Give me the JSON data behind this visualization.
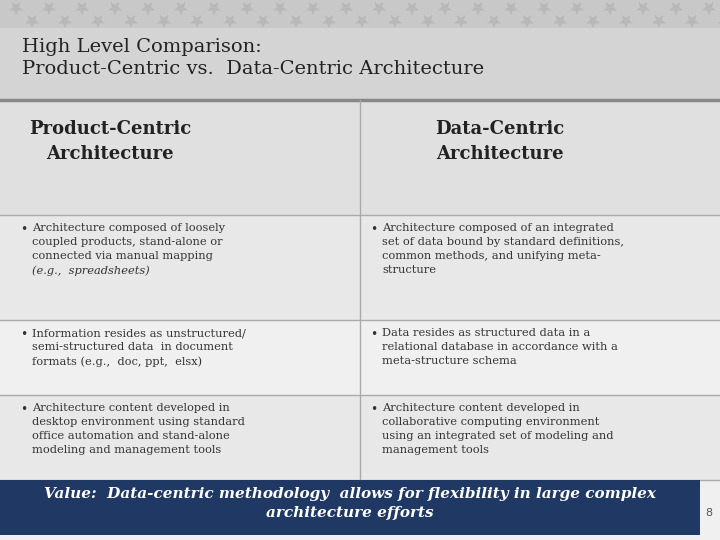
{
  "title_line1": "High Level Comparison:",
  "title_line2": "Product-Centric vs.  Data-Centric Architecture",
  "title_bg": "#d4d4d4",
  "title_color": "#222222",
  "header_left": "Product-Centric\nArchitecture",
  "header_right": "Data-Centric\nArchitecture",
  "header_color": "#222222",
  "content_bg_1": "#e8e8e8",
  "content_bg_2": "#f0f0f0",
  "content_bg_3": "#e8e8e8",
  "header_bg": "#e0e0e0",
  "main_bg": "#f0f0f0",
  "bullet_left": [
    "Architecture composed of loosely\ncoupled products, stand-alone or\nconnected via manual mapping\n(e.g.,  spreadsheets)",
    "Information resides as unstructured/\nsemi-structured data  in document\nformats (e.g.,  doc, ppt,  elsx)",
    "Architecture content developed in\ndesktop environment using standard\noffice automation and stand-alone\nmodeling and management tools"
  ],
  "bullet_right": [
    "Architecture composed of an integrated\nset of data bound by standard definitions,\ncommon methods, and unifying meta-\nstructure",
    "Data resides as structured data in a\nrelational database in accordance with a\nmeta-structure schema",
    "Architecture content developed in\ncollaborative computing environment\nusing an integrated set of modeling and\nmanagement tools"
  ],
  "footer_text": "Value:  Data-centric methodology  allows for flexibility in large complex\narchitecture efforts",
  "footer_bg": "#1f3864",
  "footer_color": "#ffffff",
  "page_num": "8",
  "star_bg": "#c8c8c8",
  "star_color": "#b8b8b8",
  "divider_color": "#888888"
}
